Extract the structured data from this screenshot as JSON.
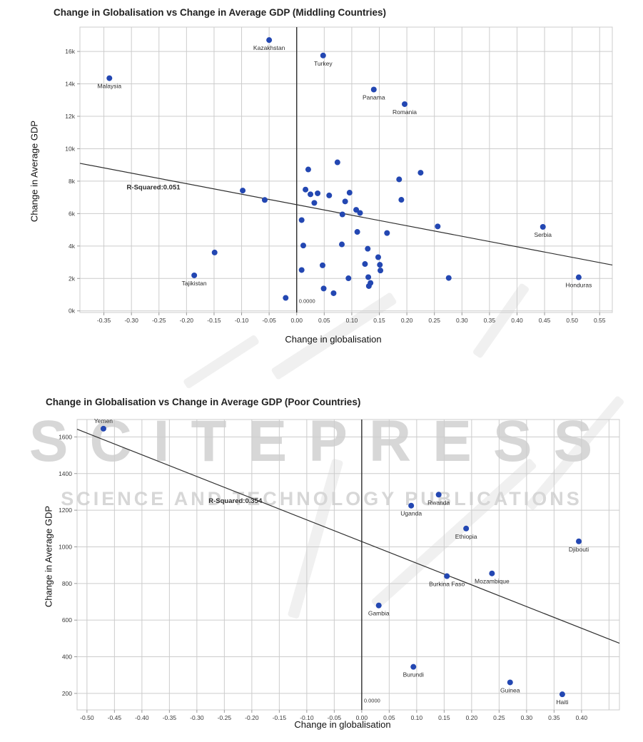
{
  "watermark": {
    "line1": "SCITEPRESS",
    "line2": "SCIENCE AND TECHNOLOGY PUBLICATIONS",
    "text_color": "#d7d7d7",
    "ribbon_color": "#e3e3e3"
  },
  "colors": {
    "marker": "#2347b2",
    "grid": "#cccccc",
    "axis": "#999999",
    "line": "#2e2e2e",
    "label_text": "#2b2b2b"
  },
  "chart_data": [
    {
      "type": "scatter",
      "title": "Change in Globalisation vs Change in Average GDP (Middling Countries)",
      "xlabel": "Change in globalisation",
      "ylabel": "Change in Average GDP",
      "xlim": [
        -0.3935,
        0.573
      ],
      "ylim": [
        -100,
        17500
      ],
      "grid": true,
      "legend": "none",
      "r_squared": {
        "label": "R-Squared:0.051",
        "x": -0.26,
        "y": 7500
      },
      "zero_label": {
        "text": "0.0000",
        "y": 500
      },
      "trendline": {
        "x1": -0.3935,
        "y1": 9100,
        "x2": 0.573,
        "y2": 2830
      },
      "x_ticks": [
        {
          "v": -0.35,
          "label": "-0.35"
        },
        {
          "v": -0.3,
          "label": "-0.30"
        },
        {
          "v": -0.25,
          "label": "-0.25"
        },
        {
          "v": -0.2,
          "label": "-0.20"
        },
        {
          "v": -0.15,
          "label": "-0.15"
        },
        {
          "v": -0.1,
          "label": "-0.10"
        },
        {
          "v": -0.05,
          "label": "-0.05"
        },
        {
          "v": 0.0,
          "label": "0.00"
        },
        {
          "v": 0.05,
          "label": "0.05"
        },
        {
          "v": 0.1,
          "label": "0.10"
        },
        {
          "v": 0.15,
          "label": "0.15"
        },
        {
          "v": 0.2,
          "label": "0.20"
        },
        {
          "v": 0.25,
          "label": "0.25"
        },
        {
          "v": 0.3,
          "label": "0.30"
        },
        {
          "v": 0.35,
          "label": "0.35"
        },
        {
          "v": 0.4,
          "label": "0.40"
        },
        {
          "v": 0.45,
          "label": "0.45"
        },
        {
          "v": 0.5,
          "label": "0.50"
        },
        {
          "v": 0.55,
          "label": "0.55"
        }
      ],
      "y_ticks": [
        {
          "v": 0,
          "label": "0k"
        },
        {
          "v": 2000,
          "label": "2k"
        },
        {
          "v": 4000,
          "label": "4k"
        },
        {
          "v": 6000,
          "label": "6k"
        },
        {
          "v": 8000,
          "label": "8k"
        },
        {
          "v": 10000,
          "label": "10k"
        },
        {
          "v": 12000,
          "label": "12k"
        },
        {
          "v": 14000,
          "label": "14k"
        },
        {
          "v": 16000,
          "label": "16k"
        }
      ],
      "points": [
        {
          "x": -0.34,
          "y": 14350,
          "label": "Malaysia"
        },
        {
          "x": -0.05,
          "y": 16700,
          "label": "Kazakhstan"
        },
        {
          "x": 0.048,
          "y": 15750,
          "label": "Turkey"
        },
        {
          "x": 0.14,
          "y": 13650,
          "label": "Panama"
        },
        {
          "x": 0.196,
          "y": 12750,
          "label": "Romania"
        },
        {
          "x": 0.447,
          "y": 5180,
          "label": "Serbia"
        },
        {
          "x": 0.512,
          "y": 2070,
          "label": "Honduras"
        },
        {
          "x": -0.186,
          "y": 2190,
          "label": "Tajikistan"
        },
        {
          "x": -0.149,
          "y": 3600
        },
        {
          "x": -0.098,
          "y": 7420
        },
        {
          "x": -0.058,
          "y": 6840
        },
        {
          "x": -0.02,
          "y": 800
        },
        {
          "x": 0.009,
          "y": 5600
        },
        {
          "x": 0.009,
          "y": 2520
        },
        {
          "x": 0.012,
          "y": 4030
        },
        {
          "x": 0.016,
          "y": 7480
        },
        {
          "x": 0.021,
          "y": 8720
        },
        {
          "x": 0.025,
          "y": 7190
        },
        {
          "x": 0.032,
          "y": 6660
        },
        {
          "x": 0.038,
          "y": 7250
        },
        {
          "x": 0.047,
          "y": 2810
        },
        {
          "x": 0.049,
          "y": 1380
        },
        {
          "x": 0.059,
          "y": 7120
        },
        {
          "x": 0.067,
          "y": 1090
        },
        {
          "x": 0.074,
          "y": 9160
        },
        {
          "x": 0.082,
          "y": 4100
        },
        {
          "x": 0.083,
          "y": 5950
        },
        {
          "x": 0.088,
          "y": 6750
        },
        {
          "x": 0.094,
          "y": 2010
        },
        {
          "x": 0.096,
          "y": 7290
        },
        {
          "x": 0.108,
          "y": 6230
        },
        {
          "x": 0.11,
          "y": 4870
        },
        {
          "x": 0.115,
          "y": 6040
        },
        {
          "x": 0.124,
          "y": 2890
        },
        {
          "x": 0.129,
          "y": 3830
        },
        {
          "x": 0.13,
          "y": 2080
        },
        {
          "x": 0.131,
          "y": 1530
        },
        {
          "x": 0.134,
          "y": 1720
        },
        {
          "x": 0.148,
          "y": 3310
        },
        {
          "x": 0.151,
          "y": 2840
        },
        {
          "x": 0.152,
          "y": 2490
        },
        {
          "x": 0.164,
          "y": 4800
        },
        {
          "x": 0.186,
          "y": 8110
        },
        {
          "x": 0.19,
          "y": 6850
        },
        {
          "x": 0.225,
          "y": 8520
        },
        {
          "x": 0.256,
          "y": 5210
        },
        {
          "x": 0.276,
          "y": 2030
        }
      ]
    },
    {
      "type": "scatter",
      "title": "Change in Globalisation vs Change in Average GDP (Poor Countries)",
      "xlabel": "Change in globalisation",
      "ylabel": "Change in Average GDP",
      "xlim": [
        -0.518,
        0.469
      ],
      "ylim": [
        110,
        1695
      ],
      "grid": true,
      "legend": "none",
      "r_squared": {
        "label": "R-Squared:0.354",
        "x": -0.23,
        "y": 1240
      },
      "zero_label": {
        "text": "0.0000",
        "y": 150
      },
      "trendline": {
        "x1": -0.518,
        "y1": 1642,
        "x2": 0.469,
        "y2": 474
      },
      "x_ticks": [
        {
          "v": -0.5,
          "label": "-0.50"
        },
        {
          "v": -0.45,
          "label": "-0.45"
        },
        {
          "v": -0.4,
          "label": "-0.40"
        },
        {
          "v": -0.35,
          "label": "-0.35"
        },
        {
          "v": -0.3,
          "label": "-0.30"
        },
        {
          "v": -0.25,
          "label": "-0.25"
        },
        {
          "v": -0.2,
          "label": "-0.20"
        },
        {
          "v": -0.15,
          "label": "-0.15"
        },
        {
          "v": -0.1,
          "label": "-0.10"
        },
        {
          "v": -0.05,
          "label": "-0.05"
        },
        {
          "v": 0.0,
          "label": "0.00"
        },
        {
          "v": 0.05,
          "label": "0.05"
        },
        {
          "v": 0.1,
          "label": "0.10"
        },
        {
          "v": 0.15,
          "label": "0.15"
        },
        {
          "v": 0.2,
          "label": "0.20"
        },
        {
          "v": 0.25,
          "label": "0.25"
        },
        {
          "v": 0.3,
          "label": "0.30"
        },
        {
          "v": 0.35,
          "label": "0.35"
        },
        {
          "v": 0.4,
          "label": "0.40"
        }
      ],
      "grid_x_extra": [
        0.45
      ],
      "y_ticks": [
        {
          "v": 200,
          "label": "200"
        },
        {
          "v": 400,
          "label": "400"
        },
        {
          "v": 600,
          "label": "600"
        },
        {
          "v": 800,
          "label": "800"
        },
        {
          "v": 1000,
          "label": "1000"
        },
        {
          "v": 1200,
          "label": "1200"
        },
        {
          "v": 1400,
          "label": "1400"
        },
        {
          "v": 1600,
          "label": "1600"
        }
      ],
      "points": [
        {
          "x": -0.47,
          "y": 1645,
          "label": "Yemen",
          "label_pos": "above"
        },
        {
          "x": 0.09,
          "y": 1225,
          "label": "Uganda"
        },
        {
          "x": 0.14,
          "y": 1285,
          "label": "Rwanda"
        },
        {
          "x": 0.19,
          "y": 1100,
          "label": "Ethiopia"
        },
        {
          "x": 0.395,
          "y": 1030,
          "label": "Djibouti"
        },
        {
          "x": 0.155,
          "y": 840,
          "label": "Burkina Faso"
        },
        {
          "x": 0.237,
          "y": 855,
          "label": "Mozambique"
        },
        {
          "x": 0.031,
          "y": 680,
          "label": "Gambia"
        },
        {
          "x": 0.094,
          "y": 345,
          "label": "Burundi"
        },
        {
          "x": 0.27,
          "y": 260,
          "label": "Guinea"
        },
        {
          "x": 0.365,
          "y": 195,
          "label": "Haiti"
        }
      ]
    }
  ]
}
